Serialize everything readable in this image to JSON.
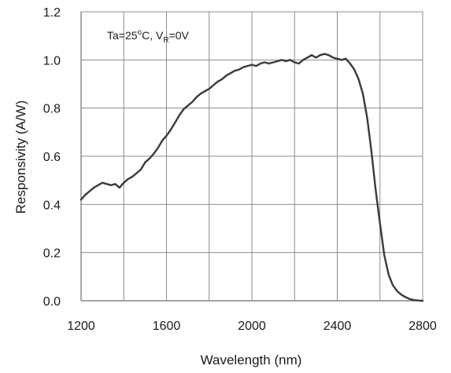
{
  "chart_data": {
    "type": "line",
    "xlabel": "Wavelength  (nm)",
    "ylabel": "Responsivity  (A/W)",
    "xlim": [
      1200,
      2800
    ],
    "ylim": [
      0,
      1.2
    ],
    "x_ticks": [
      1200,
      1600,
      2000,
      2400,
      2800
    ],
    "x_tick_labels": [
      "1200",
      "1600",
      "2000",
      "2400",
      "2800"
    ],
    "x_gridlines": [
      1200,
      1400,
      1600,
      1800,
      2000,
      2200,
      2400,
      2600,
      2800
    ],
    "y_ticks": [
      0.0,
      0.2,
      0.4,
      0.6,
      0.8,
      1.0,
      1.2
    ],
    "y_tick_labels": [
      "0.0",
      "0.2",
      "0.4",
      "0.6",
      "0.8",
      "1.0",
      "1.2"
    ],
    "grid": true,
    "annotation": {
      "prefix": "Ta=25",
      "sup": "o",
      "mid": "C, V",
      "sub": "R",
      "suffix": "=0V"
    },
    "series": [
      {
        "color": "#3a3a3a",
        "x": [
          1200,
          1220,
          1240,
          1260,
          1280,
          1300,
          1320,
          1340,
          1360,
          1380,
          1400,
          1420,
          1440,
          1460,
          1480,
          1500,
          1520,
          1540,
          1560,
          1580,
          1600,
          1620,
          1640,
          1660,
          1680,
          1700,
          1720,
          1740,
          1760,
          1780,
          1800,
          1820,
          1840,
          1860,
          1880,
          1900,
          1920,
          1940,
          1960,
          1980,
          2000,
          2020,
          2040,
          2060,
          2080,
          2100,
          2120,
          2140,
          2160,
          2180,
          2200,
          2220,
          2240,
          2260,
          2280,
          2300,
          2320,
          2340,
          2360,
          2380,
          2400,
          2420,
          2440,
          2460,
          2480,
          2500,
          2520,
          2540,
          2560,
          2580,
          2600,
          2620,
          2640,
          2660,
          2680,
          2700,
          2720,
          2740,
          2760,
          2780,
          2800
        ],
        "y": [
          0.42,
          0.44,
          0.455,
          0.47,
          0.48,
          0.49,
          0.485,
          0.48,
          0.485,
          0.47,
          0.49,
          0.505,
          0.515,
          0.53,
          0.545,
          0.575,
          0.59,
          0.61,
          0.635,
          0.665,
          0.685,
          0.71,
          0.74,
          0.77,
          0.795,
          0.81,
          0.825,
          0.845,
          0.86,
          0.87,
          0.88,
          0.895,
          0.91,
          0.92,
          0.935,
          0.945,
          0.955,
          0.96,
          0.97,
          0.975,
          0.98,
          0.975,
          0.985,
          0.99,
          0.985,
          0.99,
          0.995,
          1.0,
          0.995,
          1.0,
          0.99,
          0.985,
          1.0,
          1.01,
          1.02,
          1.01,
          1.02,
          1.025,
          1.02,
          1.01,
          1.005,
          1.0,
          1.005,
          0.985,
          0.96,
          0.92,
          0.86,
          0.76,
          0.62,
          0.46,
          0.32,
          0.19,
          0.11,
          0.065,
          0.04,
          0.025,
          0.015,
          0.007,
          0.003,
          0.001,
          0.0
        ]
      }
    ]
  }
}
